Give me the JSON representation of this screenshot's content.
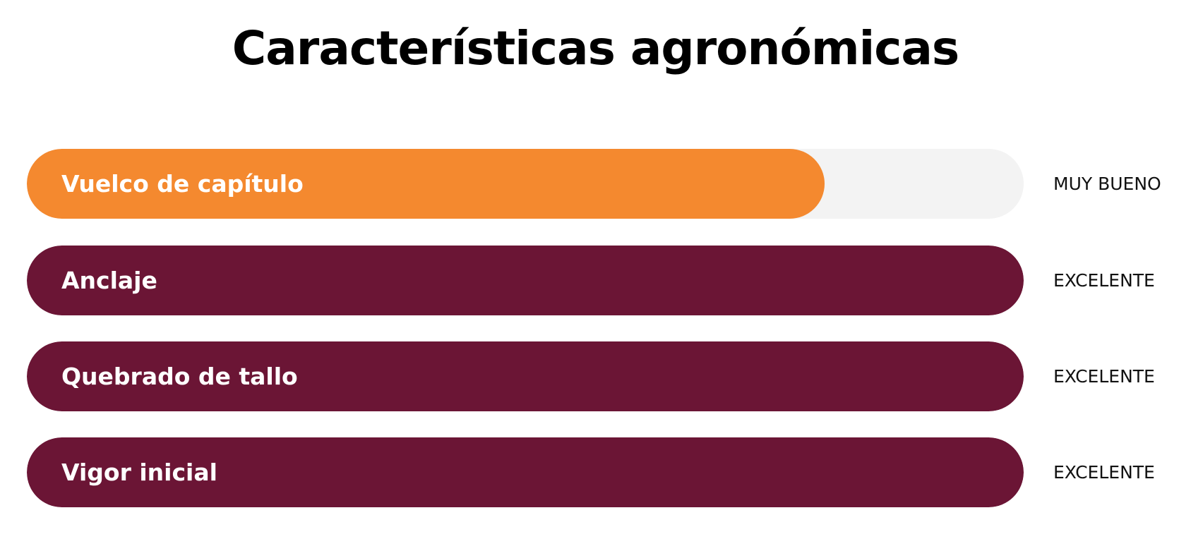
{
  "title": "Características agronómicas",
  "track_color": "#f3f3f3",
  "items": [
    {
      "label": "Vuelco de capítulo",
      "rating": "MUY BUENO",
      "level": 80,
      "color": "#f4892f"
    },
    {
      "label": "Anclaje",
      "rating": "EXCELENTE",
      "level": 100,
      "color": "#6b1535"
    },
    {
      "label": "Quebrado de tallo",
      "rating": "EXCELENTE",
      "level": 100,
      "color": "#6b1535"
    },
    {
      "label": "Vigor inicial",
      "rating": "EXCELENTE",
      "level": 100,
      "color": "#6b1535"
    }
  ]
}
